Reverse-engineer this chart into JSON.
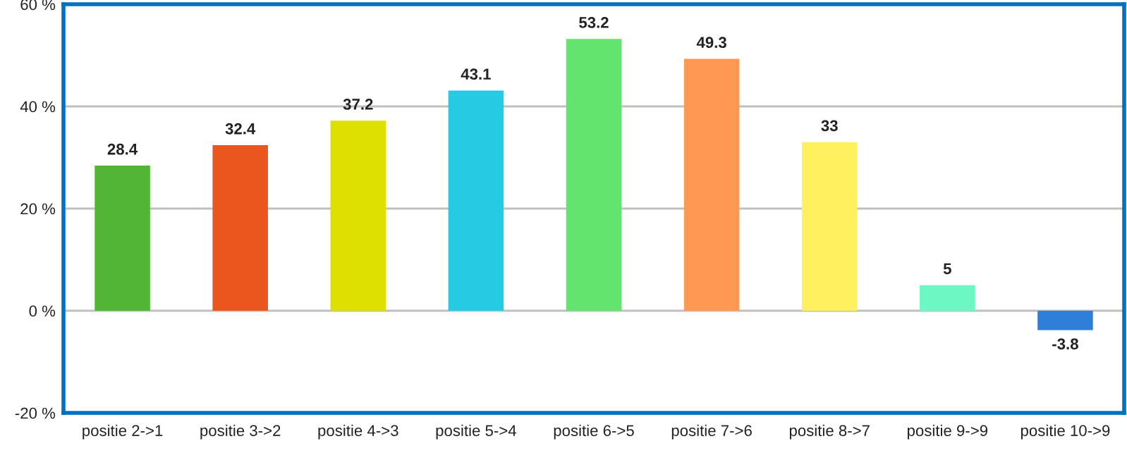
{
  "chart_data": {
    "type": "bar",
    "categories": [
      "positie 2->1",
      "positie 3->2",
      "positie 4->3",
      "positie 5->4",
      "positie 6->5",
      "positie 7->6",
      "positie 8->7",
      "positie 9->9",
      "positie 10->9"
    ],
    "values": [
      28.4,
      32.4,
      37.2,
      43.1,
      53.2,
      49.3,
      33,
      5,
      -3.8
    ],
    "colors": [
      "#52b535",
      "#eb561e",
      "#dde000",
      "#26cae3",
      "#63e46e",
      "#ff9852",
      "#fff060",
      "#6cf7c3",
      "#2f7fd8"
    ],
    "ylim": [
      -20,
      60
    ],
    "yticks": [
      {
        "value": -20,
        "label": "-20 %"
      },
      {
        "value": 0,
        "label": "0 %"
      },
      {
        "value": 20,
        "label": "20 %"
      },
      {
        "value": 40,
        "label": "40 %"
      },
      {
        "value": 60,
        "label": "60 %"
      }
    ],
    "grid": "y",
    "data_labels": true,
    "legend": false
  }
}
